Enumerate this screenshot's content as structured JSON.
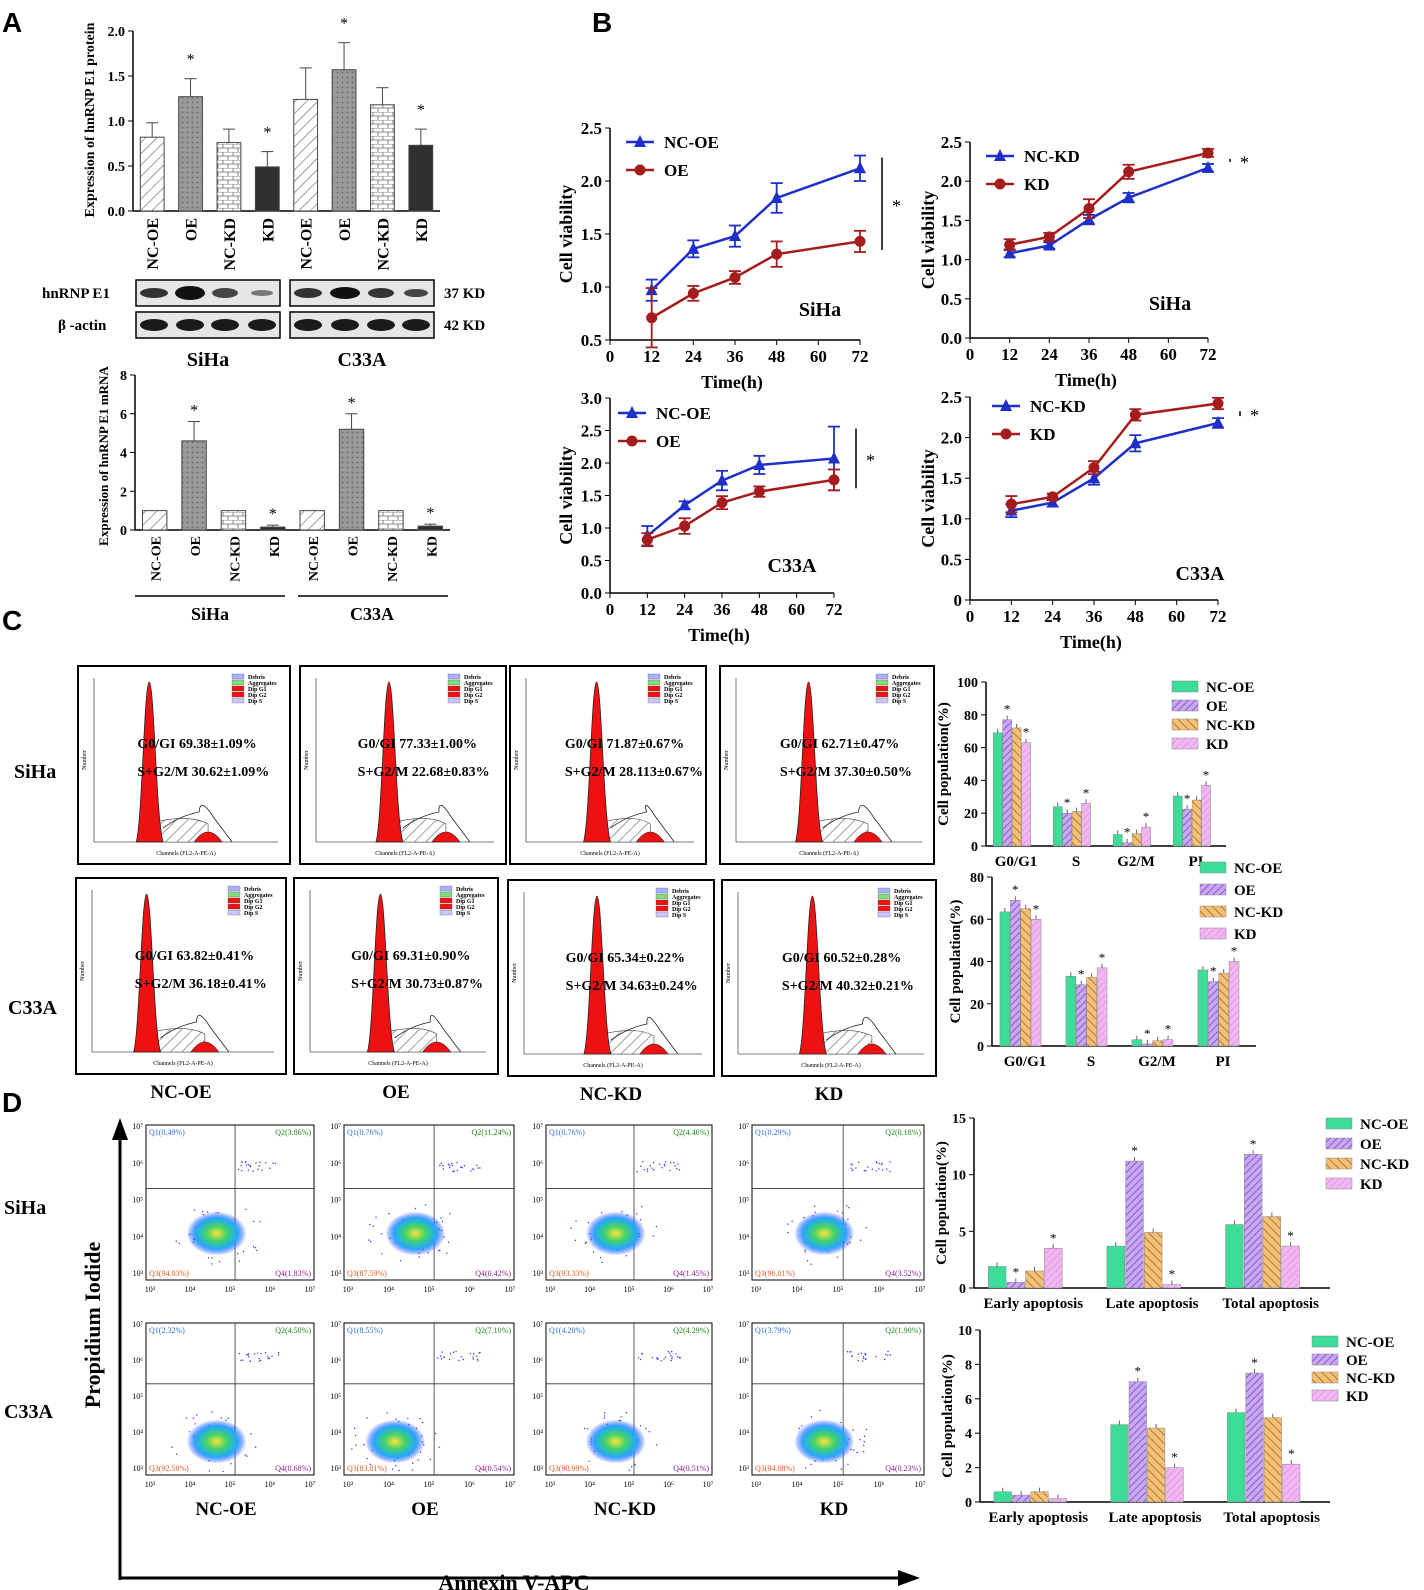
{
  "panels": {
    "A": "A",
    "B": "B",
    "C": "C",
    "D": "D"
  },
  "colors": {
    "nc_oe": "#3ddc97",
    "oe": "#9b6bd8",
    "nc_kd": "#e0a040",
    "kd": "#e07ee0",
    "line_nc": "#1f2fc9",
    "line_tr": "#a51c1c",
    "red_hist": "#ee1111",
    "flow_blue": "#2233ff"
  },
  "panel_a": {
    "protein_ylabel": "Expression of hnRNP E1 protein",
    "mrna_ylabel": "Expression of hnRNP E1 mRNA",
    "groups": [
      "NC-OE",
      "OE",
      "NC-KD",
      "KD",
      "NC-OE",
      "OE",
      "NC-KD",
      "KD"
    ],
    "protein_ticks": [
      "0.0",
      "0.5",
      "1.0",
      "1.5",
      "2.0"
    ],
    "mrna_ticks": [
      "0",
      "2",
      "4",
      "6",
      "8"
    ],
    "protein_values": [
      0.82,
      1.27,
      0.76,
      0.49,
      1.24,
      1.57,
      1.18,
      0.73
    ],
    "protein_errors": [
      0.16,
      0.2,
      0.15,
      0.17,
      0.35,
      0.3,
      0.19,
      0.18
    ],
    "mrna_values": [
      1.0,
      4.6,
      1.0,
      0.15,
      1.0,
      5.2,
      1.0,
      0.2
    ],
    "mrna_errors": [
      0,
      1.0,
      0,
      0.1,
      0,
      0.8,
      0,
      0.1
    ],
    "stars": [
      false,
      true,
      false,
      true,
      false,
      true,
      false,
      true
    ],
    "blot_rows": [
      "hnRNP E1",
      "β -actin"
    ],
    "blot_sizes": [
      "37 KD",
      "42 KD"
    ],
    "cells": [
      "SiHa",
      "C33A"
    ]
  },
  "panel_b": {
    "ylabel": "Cell viability",
    "xlabel": "Time(h)",
    "x_ticks": [
      "0",
      "12",
      "24",
      "36",
      "48",
      "60",
      "72"
    ],
    "star": "*",
    "charts": [
      {
        "cell": "SiHa",
        "legend": [
          "NC-OE",
          "OE"
        ],
        "yticks": [
          "0.5",
          "1.0",
          "1.5",
          "2.0",
          "2.5"
        ],
        "ymin": 0.5,
        "ymax": 2.5,
        "nc": [
          0.97,
          1.36,
          1.48,
          1.84,
          2.12
        ],
        "tr": [
          0.71,
          0.94,
          1.09,
          1.31,
          1.43
        ],
        "nc_err": [
          0.1,
          0.08,
          0.1,
          0.14,
          0.12
        ],
        "tr_err": [
          0.28,
          0.07,
          0.06,
          0.12,
          0.1
        ]
      },
      {
        "cell": "SiHa",
        "legend": [
          "NC-KD",
          "KD"
        ],
        "yticks": [
          "0.0",
          "0.5",
          "1.0",
          "1.5",
          "2.0",
          "2.5"
        ],
        "ymin": 0,
        "ymax": 2.5,
        "nc": [
          1.08,
          1.18,
          1.51,
          1.79,
          2.17
        ],
        "tr": [
          1.19,
          1.29,
          1.65,
          2.12,
          2.36
        ],
        "nc_err": [
          0.05,
          0.04,
          0.06,
          0.06,
          0.05
        ],
        "tr_err": [
          0.07,
          0.05,
          0.12,
          0.09,
          0.05
        ]
      },
      {
        "cell": "C33A",
        "legend": [
          "NC-OE",
          "OE"
        ],
        "yticks": [
          "0.0",
          "0.5",
          "1.0",
          "1.5",
          "2.0",
          "2.5",
          "3.0"
        ],
        "ymin": 0,
        "ymax": 3.0,
        "nc": [
          0.88,
          1.35,
          1.73,
          1.97,
          2.07
        ],
        "tr": [
          0.82,
          1.03,
          1.39,
          1.56,
          1.74
        ],
        "nc_err": [
          0.15,
          0.06,
          0.15,
          0.14,
          0.49
        ],
        "tr_err": [
          0.1,
          0.12,
          0.1,
          0.08,
          0.16
        ]
      },
      {
        "cell": "C33A",
        "legend": [
          "NC-KD",
          "KD"
        ],
        "yticks": [
          "0",
          "0.5",
          "1.0",
          "1.5",
          "2.0",
          "2.5"
        ],
        "ymin": 0,
        "ymax": 2.5,
        "nc": [
          1.1,
          1.2,
          1.5,
          1.93,
          2.18
        ],
        "tr": [
          1.18,
          1.27,
          1.63,
          2.28,
          2.42
        ],
        "nc_err": [
          0.08,
          0.05,
          0.08,
          0.1,
          0.06
        ],
        "tr_err": [
          0.1,
          0.04,
          0.08,
          0.07,
          0.07
        ]
      }
    ]
  },
  "panel_c": {
    "rows": [
      "SiHa",
      "C33A"
    ],
    "cols": [
      "NC-OE",
      "OE",
      "NC-KD",
      "KD"
    ],
    "legend": [
      "Debris",
      "Aggregates",
      "Dip G1",
      "Dip G2",
      "Dip S"
    ],
    "axis_x": "Channels (FL2-A-PE-A)",
    "axis_y": "Number",
    "stats": [
      [
        "G0/GI 69.38±1.09%",
        "S+G2/M 30.62±1.09%"
      ],
      [
        "G0/GI 77.33±1.00%",
        "S+G2/M 22.68±0.83%"
      ],
      [
        "G0/GI 71.87±0.67%",
        "S+G2/M 28.113±0.67%"
      ],
      [
        "G0/GI 62.71±0.47%",
        "S+G2/M 37.30±0.50%"
      ],
      [
        "G0/GI 63.82±0.41%",
        "S+G2/M 36.18±0.41%"
      ],
      [
        "G0/GI 69.31±0.90%",
        "S+G2/M 30.73±0.87%"
      ],
      [
        "G0/GI 65.34±0.22%",
        "S+G2/M 34.63±0.24%"
      ],
      [
        "G0/GI 60.52±0.28%",
        "S+G2/M 40.32±0.21%"
      ]
    ],
    "bar_charts": [
      {
        "type": "bar",
        "ylabel": "Cell population(%)",
        "categories": [
          "G0/G1",
          "S",
          "G2/M",
          "PI"
        ],
        "yticks": [
          "0",
          "20",
          "40",
          "60",
          "80",
          "100"
        ],
        "ymax": 100,
        "legend": [
          "NC-OE",
          "OE",
          "NC-KD",
          "KD"
        ],
        "series": [
          [
            69,
            24,
            7,
            30.5
          ],
          [
            77,
            20,
            2,
            22.5
          ],
          [
            72,
            21,
            7.5,
            28
          ],
          [
            63,
            26,
            11.5,
            37
          ]
        ],
        "stars": [
          [
            false,
            false,
            false,
            false
          ],
          [
            true,
            true,
            true,
            true
          ],
          [
            false,
            false,
            false,
            false
          ],
          [
            true,
            true,
            true,
            true
          ]
        ]
      },
      {
        "type": "bar",
        "ylabel": "Cell population(%)",
        "categories": [
          "G0/G1",
          "S",
          "G2/M",
          "PI"
        ],
        "yticks": [
          "0",
          "20",
          "40",
          "60",
          "80"
        ],
        "ymax": 80,
        "legend": [
          "NC-OE",
          "OE",
          "NC-KD",
          "KD"
        ],
        "series": [
          [
            63.5,
            33,
            3,
            36
          ],
          [
            69,
            29,
            1,
            30.5
          ],
          [
            65,
            32.5,
            2.5,
            34.5
          ],
          [
            60,
            37,
            3,
            40
          ]
        ],
        "stars": [
          [
            false,
            false,
            false,
            false
          ],
          [
            true,
            true,
            true,
            true
          ],
          [
            false,
            false,
            false,
            false
          ],
          [
            true,
            true,
            true,
            true
          ]
        ]
      }
    ]
  },
  "panel_d": {
    "y_axis": "Propidium Iodide",
    "x_axis": "Annexin V-APC",
    "rows": [
      "SiHa",
      "C33A"
    ],
    "cols": [
      "NC-OE",
      "OE",
      "NC-KD",
      "KD"
    ],
    "quadrants": [
      [
        "Q1(0.49%)",
        "Q2(3.86%)",
        "Q3(94.03%)",
        "Q4(1.83%)"
      ],
      [
        "Q1(0.76%)",
        "Q2(11.24%)",
        "Q3(87.59%)",
        "Q4(0.42%)"
      ],
      [
        "Q1(0.76%)",
        "Q2(4.46%)",
        "Q3(93.33%)",
        "Q4(1.45%)"
      ],
      [
        "Q1(0.29%)",
        "Q2(0.18%)",
        "Q3(96.01%)",
        "Q4(3.52%)"
      ],
      [
        "Q1(2.32%)",
        "Q2(4.50%)",
        "Q3(92.50%)",
        "Q4(0.68%)"
      ],
      [
        "Q1(8.55%)",
        "Q2(7.10%)",
        "Q3(83.81%)",
        "Q4(0.54%)"
      ],
      [
        "Q1(4.20%)",
        "Q2(4.29%)",
        "Q3(90.99%)",
        "Q4(0.51%)"
      ],
      [
        "Q1(3.79%)",
        "Q2(1.90%)",
        "Q3(94.08%)",
        "Q4(0.23%)"
      ]
    ],
    "x_ticks": [
      "10³",
      "10⁴",
      "10⁵",
      "10⁶",
      "10⁷"
    ],
    "y_ticks": [
      "10³",
      "10⁴",
      "10⁵",
      "10⁶",
      "10⁷"
    ],
    "bar_charts": [
      {
        "type": "bar",
        "ylabel": "Cell population(%)",
        "categories": [
          "Early apoptosis",
          "Late apoptosis",
          "Total apoptosis"
        ],
        "yticks": [
          "0",
          "5",
          "10",
          "15"
        ],
        "ymax": 15,
        "legend": [
          "NC-OE",
          "OE",
          "NC-KD",
          "KD"
        ],
        "series": [
          [
            1.9,
            3.7,
            5.6
          ],
          [
            0.5,
            11.2,
            11.8
          ],
          [
            1.5,
            4.9,
            6.3
          ],
          [
            3.5,
            0.3,
            3.7
          ]
        ],
        "stars": [
          [
            false,
            false,
            false
          ],
          [
            true,
            true,
            true
          ],
          [
            false,
            false,
            false
          ],
          [
            true,
            true,
            true
          ]
        ]
      },
      {
        "type": "bar",
        "ylabel": "Cell population(%)",
        "categories": [
          "Early apoptosis",
          "Late apoptosis",
          "Total apoptosis"
        ],
        "yticks": [
          "0",
          "2",
          "4",
          "6",
          "8",
          "10"
        ],
        "ymax": 10,
        "legend": [
          "NC-OE",
          "OE",
          "NC-KD",
          "KD"
        ],
        "series": [
          [
            0.6,
            4.5,
            5.2
          ],
          [
            0.4,
            7.0,
            7.5
          ],
          [
            0.6,
            4.3,
            4.9
          ],
          [
            0.2,
            2.0,
            2.2
          ]
        ],
        "stars": [
          [
            false,
            false,
            false
          ],
          [
            false,
            true,
            true
          ],
          [
            false,
            false,
            false
          ],
          [
            false,
            true,
            true
          ]
        ]
      }
    ]
  }
}
